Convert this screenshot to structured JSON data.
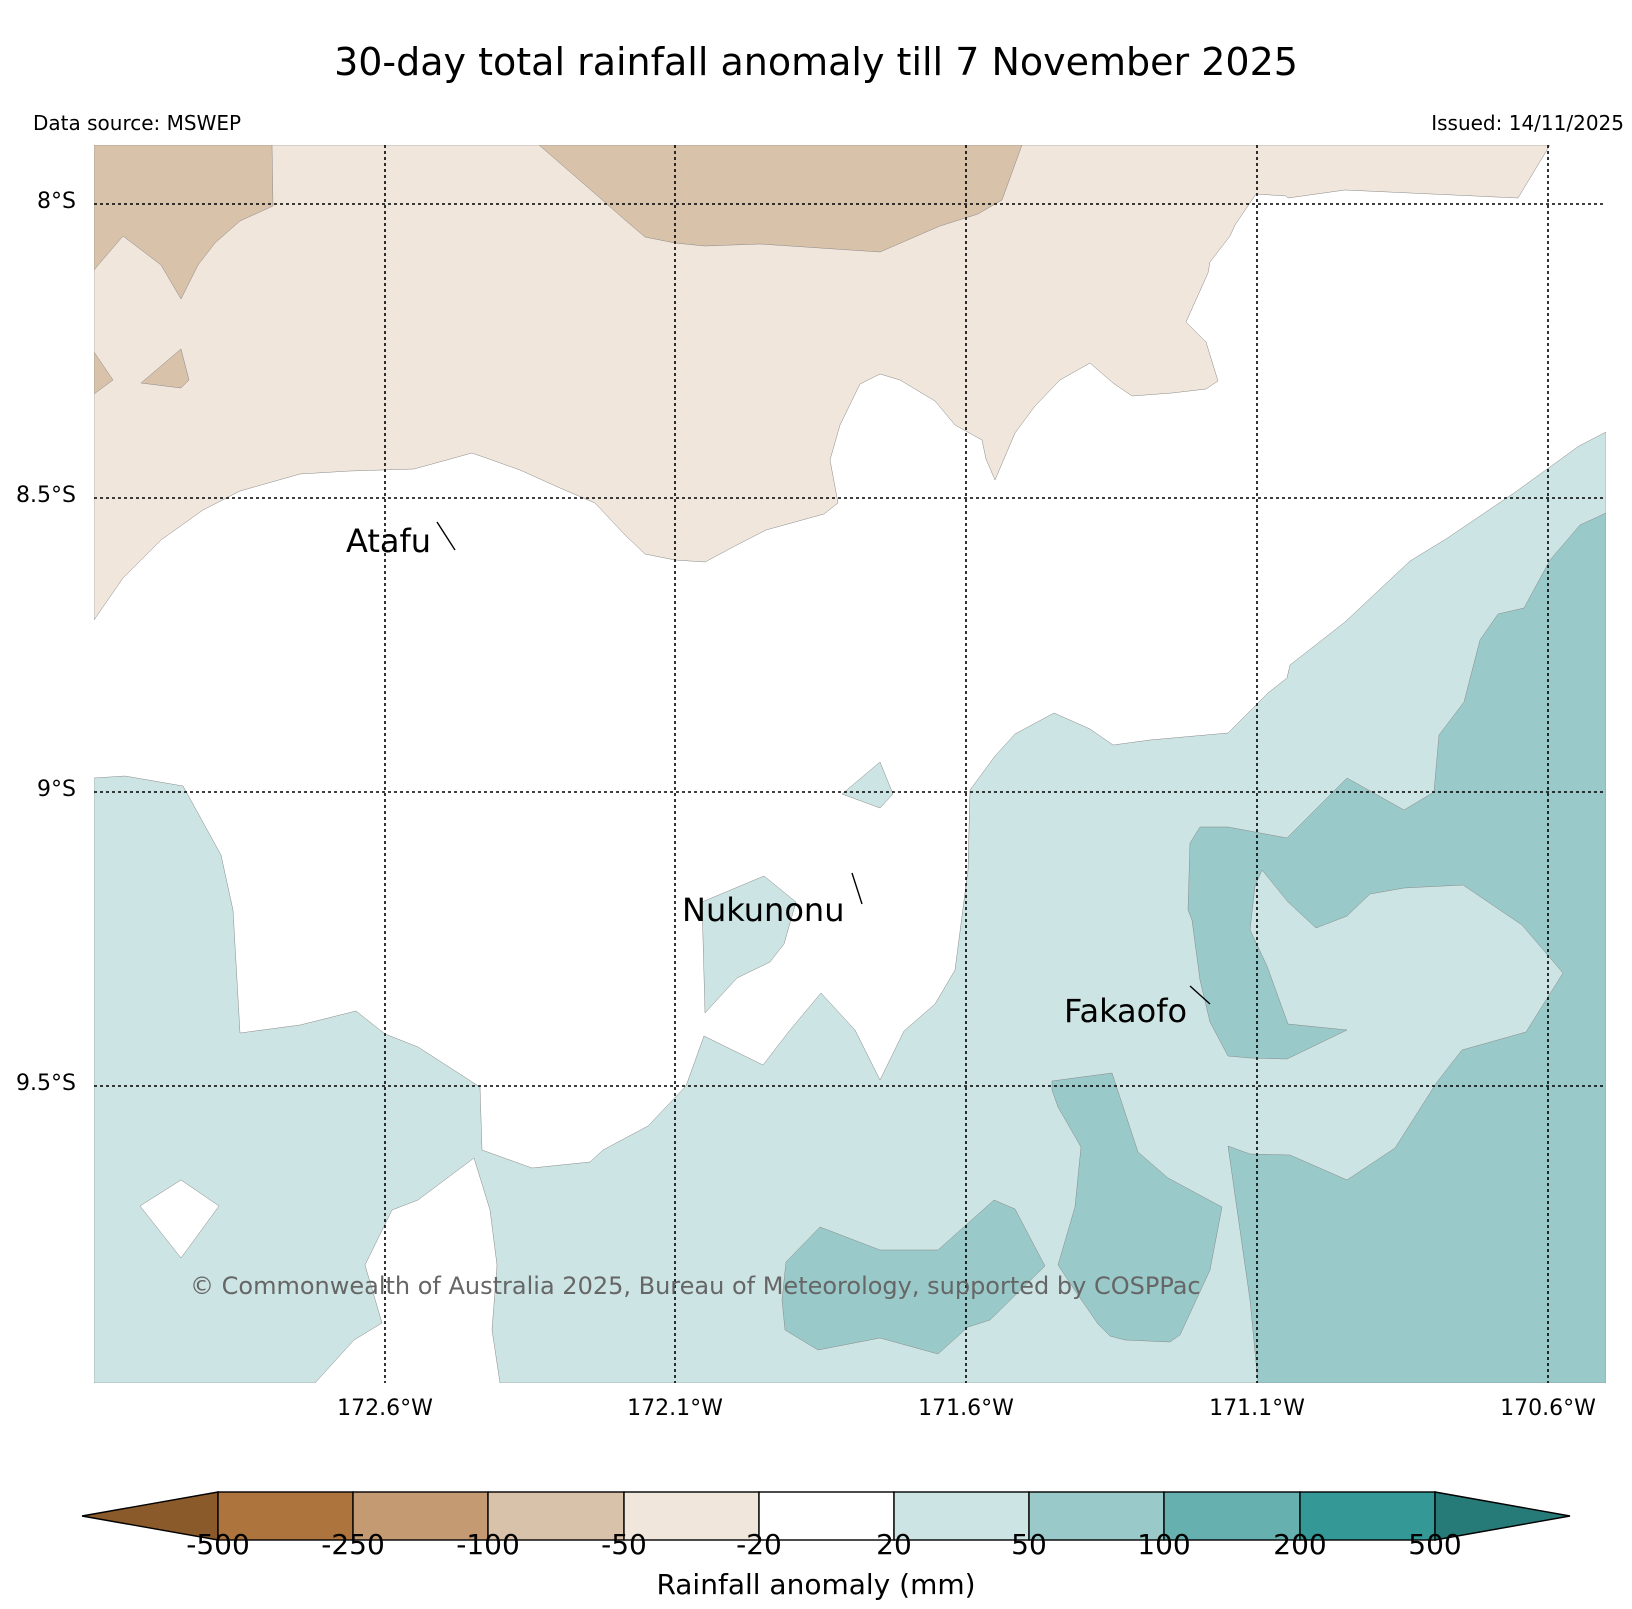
{
  "title": "30-day total rainfall anomaly till 7 November 2025",
  "data_source": "Data source: MSWEP",
  "issued": "Issued: 14/11/2025",
  "copyright": "© Commonwealth of Australia 2025, Bureau of Meteorology, supported by COSPPac",
  "map": {
    "lat_labels": [
      "8°S",
      "8.5°S",
      "9°S",
      "9.5°S"
    ],
    "lon_labels": [
      "172.6°W",
      "172.1°W",
      "171.6°W",
      "171.1°W",
      "170.6°W"
    ],
    "places": [
      {
        "name": "Atafu"
      },
      {
        "name": "Nukunonu"
      },
      {
        "name": "Fakaofo"
      }
    ]
  },
  "colorbar": {
    "title": "Rainfall anomaly (mm)",
    "ticks": [
      "-500",
      "-250",
      "-100",
      "-50",
      "-20",
      "20",
      "50",
      "100",
      "200",
      "500"
    ],
    "colors": [
      "#8b5a2b",
      "#ad743d",
      "#c39a72",
      "#d9c2aa",
      "#f0e6dc",
      "#ffffff",
      "#cce4e3",
      "#99cac9",
      "#66b0af",
      "#339896",
      "#267a78"
    ]
  }
}
